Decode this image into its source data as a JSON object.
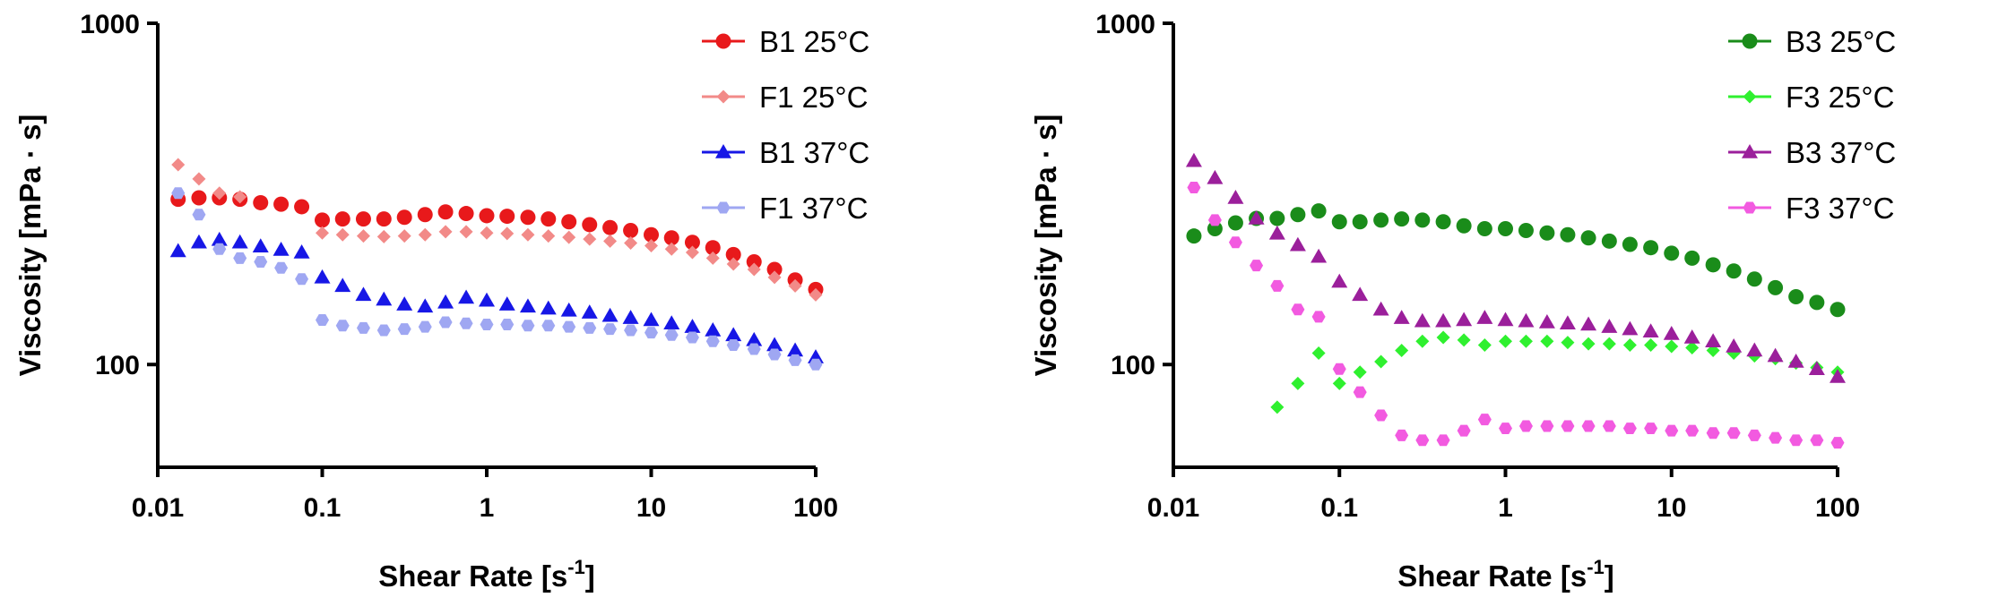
{
  "chart_data": [
    {
      "type": "scatter",
      "xscale": "log",
      "yscale": "log",
      "xlabel": "Shear Rate [s",
      "xlabel_sup": "-1",
      "xlabel_end": "]",
      "ylabel": "Viscosity [mPa · s]",
      "xlim": [
        0.01,
        100
      ],
      "ylim": [
        50,
        1000
      ],
      "x_ticks": [
        0.01,
        0.1,
        1,
        10,
        100
      ],
      "x_tick_labels": [
        "0.01",
        "0.1",
        "1",
        "10",
        "100"
      ],
      "y_ticks": [
        100,
        1000
      ],
      "y_tick_labels": [
        "100",
        "1000"
      ],
      "legend_position": "top-right",
      "series": [
        {
          "name": "B1 25°C",
          "color": "#e8191b",
          "marker": "circle",
          "points": [
            [
              0.0133,
              305
            ],
            [
              0.0178,
              308
            ],
            [
              0.0237,
              308
            ],
            [
              0.0316,
              305
            ],
            [
              0.0422,
              298
            ],
            [
              0.0562,
              295
            ],
            [
              0.075,
              290
            ],
            [
              0.1,
              265
            ],
            [
              0.133,
              267
            ],
            [
              0.178,
              267
            ],
            [
              0.237,
              267
            ],
            [
              0.316,
              270
            ],
            [
              0.422,
              275
            ],
            [
              0.562,
              280
            ],
            [
              0.75,
              277
            ],
            [
              1,
              273
            ],
            [
              1.33,
              272
            ],
            [
              1.78,
              270
            ],
            [
              2.37,
              267
            ],
            [
              3.16,
              262
            ],
            [
              4.22,
              257
            ],
            [
              5.62,
              252
            ],
            [
              7.5,
              247
            ],
            [
              10,
              240
            ],
            [
              13.3,
              235
            ],
            [
              17.8,
              228
            ],
            [
              23.7,
              220
            ],
            [
              31.6,
              210
            ],
            [
              42.2,
              200
            ],
            [
              56.2,
              190
            ],
            [
              75,
              177
            ],
            [
              100,
              166
            ]
          ]
        },
        {
          "name": "F1 25°C",
          "color": "#f28a88",
          "marker": "diamond",
          "points": [
            [
              0.0133,
              385
            ],
            [
              0.0178,
              350
            ],
            [
              0.0237,
              318
            ],
            [
              0.0316,
              310
            ],
            [
              0.1,
              243
            ],
            [
              0.133,
              240
            ],
            [
              0.178,
              238
            ],
            [
              0.237,
              237
            ],
            [
              0.316,
              238
            ],
            [
              0.422,
              240
            ],
            [
              0.562,
              245
            ],
            [
              0.75,
              245
            ],
            [
              1,
              243
            ],
            [
              1.33,
              242
            ],
            [
              1.78,
              240
            ],
            [
              2.37,
              238
            ],
            [
              3.16,
              236
            ],
            [
              4.22,
              233
            ],
            [
              5.62,
              230
            ],
            [
              7.5,
              227
            ],
            [
              10,
              223
            ],
            [
              13.3,
              218
            ],
            [
              17.8,
              213
            ],
            [
              23.7,
              205
            ],
            [
              31.6,
              197
            ],
            [
              42.2,
              190
            ],
            [
              56.2,
              180
            ],
            [
              75,
              170
            ],
            [
              100,
              160
            ]
          ]
        },
        {
          "name": "B1 37°C",
          "color": "#1717e6",
          "marker": "triangle",
          "points": [
            [
              0.0133,
              215
            ],
            [
              0.0178,
              228
            ],
            [
              0.0237,
              232
            ],
            [
              0.0316,
              228
            ],
            [
              0.0422,
              222
            ],
            [
              0.0562,
              217
            ],
            [
              0.075,
              213
            ],
            [
              0.1,
              180
            ],
            [
              0.133,
              170
            ],
            [
              0.178,
              160
            ],
            [
              0.237,
              155
            ],
            [
              0.316,
              150
            ],
            [
              0.422,
              148
            ],
            [
              0.562,
              152
            ],
            [
              0.75,
              157
            ],
            [
              1,
              154
            ],
            [
              1.33,
              150
            ],
            [
              1.78,
              148
            ],
            [
              2.37,
              146
            ],
            [
              3.16,
              144
            ],
            [
              4.22,
              142
            ],
            [
              5.62,
              139
            ],
            [
              7.5,
              137
            ],
            [
              10,
              135
            ],
            [
              13.3,
              132
            ],
            [
              17.8,
              129
            ],
            [
              23.7,
              126
            ],
            [
              31.6,
              122
            ],
            [
              42.2,
              118
            ],
            [
              56.2,
              114
            ],
            [
              75,
              110
            ],
            [
              100,
              105
            ]
          ]
        },
        {
          "name": "F1 37°C",
          "color": "#9fa7f2",
          "marker": "hexagon",
          "points": [
            [
              0.0133,
              318
            ],
            [
              0.0178,
              275
            ],
            [
              0.0237,
              218
            ],
            [
              0.0316,
              205
            ],
            [
              0.0422,
              200
            ],
            [
              0.0562,
              192
            ],
            [
              0.075,
              178
            ],
            [
              0.1,
              135
            ],
            [
              0.133,
              130
            ],
            [
              0.178,
              128
            ],
            [
              0.237,
              126
            ],
            [
              0.316,
              127
            ],
            [
              0.422,
              129
            ],
            [
              0.562,
              133
            ],
            [
              0.75,
              132
            ],
            [
              1,
              131
            ],
            [
              1.33,
              131
            ],
            [
              1.78,
              130
            ],
            [
              2.37,
              130
            ],
            [
              3.16,
              129
            ],
            [
              4.22,
              128
            ],
            [
              5.62,
              127
            ],
            [
              7.5,
              126
            ],
            [
              10,
              124
            ],
            [
              13.3,
              122
            ],
            [
              17.8,
              120
            ],
            [
              23.7,
              117
            ],
            [
              31.6,
              114
            ],
            [
              42.2,
              111
            ],
            [
              56.2,
              107
            ],
            [
              75,
              103
            ],
            [
              100,
              100
            ]
          ]
        }
      ]
    },
    {
      "type": "scatter",
      "xscale": "log",
      "yscale": "log",
      "xlabel": "Shear Rate [s",
      "xlabel_sup": "-1",
      "xlabel_end": "]",
      "ylabel": "Viscosity [mPa · s]",
      "xlim": [
        0.01,
        100
      ],
      "ylim": [
        50,
        1000
      ],
      "x_ticks": [
        0.01,
        0.1,
        1,
        10,
        100
      ],
      "x_tick_labels": [
        "0.01",
        "0.1",
        "1",
        "10",
        "100"
      ],
      "y_ticks": [
        100,
        1000
      ],
      "y_tick_labels": [
        "100",
        "1000"
      ],
      "legend_position": "top-right",
      "series": [
        {
          "name": "B3 25°C",
          "color": "#1a8c1a",
          "marker": "circle",
          "points": [
            [
              0.0133,
              238
            ],
            [
              0.0178,
              250
            ],
            [
              0.0237,
              260
            ],
            [
              0.0316,
              268
            ],
            [
              0.0422,
              268
            ],
            [
              0.0562,
              275
            ],
            [
              0.075,
              282
            ],
            [
              0.1,
              262
            ],
            [
              0.133,
              262
            ],
            [
              0.178,
              265
            ],
            [
              0.237,
              267
            ],
            [
              0.316,
              265
            ],
            [
              0.422,
              262
            ],
            [
              0.562,
              255
            ],
            [
              0.75,
              250
            ],
            [
              1,
              250
            ],
            [
              1.33,
              247
            ],
            [
              1.78,
              243
            ],
            [
              2.37,
              240
            ],
            [
              3.16,
              235
            ],
            [
              4.22,
              230
            ],
            [
              5.62,
              225
            ],
            [
              7.5,
              220
            ],
            [
              10,
              212
            ],
            [
              13.3,
              205
            ],
            [
              17.8,
              196
            ],
            [
              23.7,
              188
            ],
            [
              31.6,
              178
            ],
            [
              42.2,
              168
            ],
            [
              56.2,
              158
            ],
            [
              75,
              152
            ],
            [
              100,
              145
            ]
          ]
        },
        {
          "name": "F3 25°C",
          "color": "#2ff02f",
          "marker": "diamond",
          "points": [
            [
              0.0422,
              75
            ],
            [
              0.0562,
              88
            ],
            [
              0.075,
              108
            ],
            [
              0.1,
              88
            ],
            [
              0.133,
              95
            ],
            [
              0.178,
              102
            ],
            [
              0.237,
              110
            ],
            [
              0.316,
              117
            ],
            [
              0.422,
              120
            ],
            [
              0.562,
              118
            ],
            [
              0.75,
              114
            ],
            [
              1,
              117
            ],
            [
              1.33,
              117
            ],
            [
              1.78,
              117
            ],
            [
              2.37,
              116
            ],
            [
              3.16,
              115
            ],
            [
              4.22,
              115
            ],
            [
              5.62,
              114
            ],
            [
              7.5,
              114
            ],
            [
              10,
              113
            ],
            [
              13.3,
              112
            ],
            [
              17.8,
              110
            ],
            [
              23.7,
              108
            ],
            [
              31.6,
              106
            ],
            [
              42.2,
              104
            ],
            [
              56.2,
              101
            ],
            [
              75,
              98
            ],
            [
              100,
              95
            ]
          ]
        },
        {
          "name": "B3 37°C",
          "color": "#9b1f9b",
          "marker": "triangle",
          "points": [
            [
              0.0133,
              395
            ],
            [
              0.0178,
              352
            ],
            [
              0.0237,
              308
            ],
            [
              0.0316,
              268
            ],
            [
              0.0422,
              242
            ],
            [
              0.0562,
              224
            ],
            [
              0.075,
              207
            ],
            [
              0.1,
              175
            ],
            [
              0.133,
              160
            ],
            [
              0.178,
              145
            ],
            [
              0.237,
              137
            ],
            [
              0.316,
              134
            ],
            [
              0.422,
              134
            ],
            [
              0.562,
              135
            ],
            [
              0.75,
              137
            ],
            [
              1,
              135
            ],
            [
              1.33,
              134
            ],
            [
              1.78,
              133
            ],
            [
              2.37,
              132
            ],
            [
              3.16,
              131
            ],
            [
              4.22,
              129
            ],
            [
              5.62,
              127
            ],
            [
              7.5,
              125
            ],
            [
              10,
              123
            ],
            [
              13.3,
              120
            ],
            [
              17.8,
              117
            ],
            [
              23.7,
              113
            ],
            [
              31.6,
              110
            ],
            [
              42.2,
              106
            ],
            [
              56.2,
              102
            ],
            [
              75,
              97
            ],
            [
              100,
              92
            ]
          ]
        },
        {
          "name": "F3 37°C",
          "color": "#f25ae0",
          "marker": "hexagon",
          "points": [
            [
              0.0133,
              330
            ],
            [
              0.0178,
              265
            ],
            [
              0.0237,
              228
            ],
            [
              0.0316,
              195
            ],
            [
              0.0422,
              170
            ],
            [
              0.0562,
              145
            ],
            [
              0.075,
              138
            ],
            [
              0.1,
              97
            ],
            [
              0.133,
              83
            ],
            [
              0.178,
              71
            ],
            [
              0.237,
              62
            ],
            [
              0.316,
              60
            ],
            [
              0.422,
              60
            ],
            [
              0.562,
              64
            ],
            [
              0.75,
              69
            ],
            [
              1,
              65
            ],
            [
              1.33,
              66
            ],
            [
              1.78,
              66
            ],
            [
              2.37,
              66
            ],
            [
              3.16,
              66
            ],
            [
              4.22,
              66
            ],
            [
              5.62,
              65
            ],
            [
              7.5,
              65
            ],
            [
              10,
              64
            ],
            [
              13.3,
              64
            ],
            [
              17.8,
              63
            ],
            [
              23.7,
              63
            ],
            [
              31.6,
              62
            ],
            [
              42.2,
              61
            ],
            [
              56.2,
              60
            ],
            [
              75,
              60
            ],
            [
              100,
              59
            ]
          ]
        }
      ]
    }
  ]
}
